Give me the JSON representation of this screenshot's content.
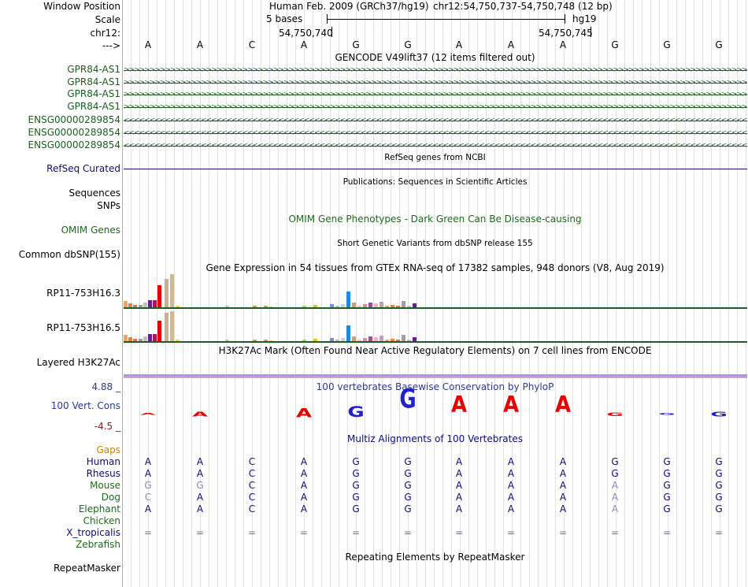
{
  "header": {
    "window_position_label": "Window Position",
    "assembly_text": "Human Feb. 2009 (GRCh37/hg19)",
    "position_text": "chr12:54,750,737-54,750,748 (12 bp)",
    "scale_label": "Scale",
    "scale_text": "5 bases",
    "scale_db": "hg19",
    "chrom_label": "chr12:",
    "coord_left": "54,750,740",
    "coord_right": "54,750,745",
    "strand_label": "--->"
  },
  "bases": [
    "A",
    "A",
    "C",
    "A",
    "G",
    "G",
    "A",
    "A",
    "A",
    "G",
    "G",
    "G"
  ],
  "gencode": {
    "title": "GENCODE V49lift37 (12 items filtered out)",
    "items": [
      "GPR84-AS1",
      "GPR84-AS1",
      "GPR84-AS1",
      "GPR84-AS1",
      "ENSG00000289854",
      "ENSG00000289854",
      "ENSG00000289854"
    ]
  },
  "refseq": {
    "title": "RefSeq genes from NCBI",
    "label": "RefSeq Curated"
  },
  "publications": {
    "title": "Publications: Sequences in Scientific Articles",
    "label1": "Sequences",
    "label2": "SNPs"
  },
  "omim": {
    "title": "OMIM Gene Phenotypes - Dark Green Can Be Disease-causing",
    "label": "OMIM Genes"
  },
  "dbsnp": {
    "title": "Short Genetic Variants from dbSNP release 155",
    "label": "Common dbSNP(155)"
  },
  "gtex": {
    "title": "Gene Expression in 54 tissues from GTEx RNA-seq of 17382 samples, 948 donors (V8, Aug 2019)",
    "genes": [
      "RP11-753H16.3",
      "RP11-753H16.5"
    ]
  },
  "h3k27ac": {
    "title": "H3K27Ac Mark (Often Found Near Active Regulatory Elements) on 7 cell lines from ENCODE",
    "label": "Layered H3K27Ac"
  },
  "phylop": {
    "title": "100 vertebrates Basewise Conservation by PhyloP",
    "label": "100 Vert. Cons",
    "max": "4.88 _",
    "min": "-4.5 _"
  },
  "multiz": {
    "title": "Multiz Alignments of 100 Vertebrates",
    "gaps_label": "Gaps",
    "species": [
      {
        "name": "Human",
        "bases": [
          "A",
          "A",
          "C",
          "A",
          "G",
          "G",
          "A",
          "A",
          "A",
          "G",
          "G",
          "G"
        ]
      },
      {
        "name": "Rhesus",
        "bases": [
          "A",
          "A",
          "C",
          "A",
          "G",
          "G",
          "A",
          "A",
          "A",
          "G",
          "G",
          "G"
        ]
      },
      {
        "name": "Mouse",
        "bases": [
          "G",
          "G",
          "C",
          "A",
          "G",
          "G",
          "A",
          "A",
          "A",
          "A",
          "G",
          "G"
        ]
      },
      {
        "name": "Dog",
        "bases": [
          "C",
          "A",
          "C",
          "A",
          "G",
          "G",
          "A",
          "A",
          "A",
          "A",
          "G",
          "G"
        ]
      },
      {
        "name": "Elephant",
        "bases": [
          "A",
          "A",
          "C",
          "A",
          "G",
          "G",
          "A",
          "A",
          "A",
          "A",
          "G",
          "G"
        ]
      },
      {
        "name": "Chicken",
        "bases": [
          "",
          "",
          "",
          "",
          "",
          "",
          "",
          "",
          "",
          "",
          "",
          ""
        ]
      },
      {
        "name": "X_tropicalis",
        "bases": [
          "=",
          "=",
          "=",
          "=",
          "=",
          "=",
          "=",
          "=",
          "=",
          "=",
          "=",
          "="
        ]
      },
      {
        "name": "Zebrafish",
        "bases": [
          "",
          "",
          "",
          "",
          "",
          "",
          "",
          "",
          "",
          "",
          "",
          ""
        ]
      }
    ]
  },
  "repeatmasker": {
    "title": "Repeating Elements by RepeatMasker",
    "label": "RepeatMasker"
  },
  "colors": {
    "gene_green": "#1b5e20",
    "refseq_navy": "#0c0c78",
    "omim_green": "#1b6b1b",
    "phylop_blue": "#2d3a8c",
    "phylop_red": "#e60000",
    "gaps_orange": "#d08000"
  }
}
